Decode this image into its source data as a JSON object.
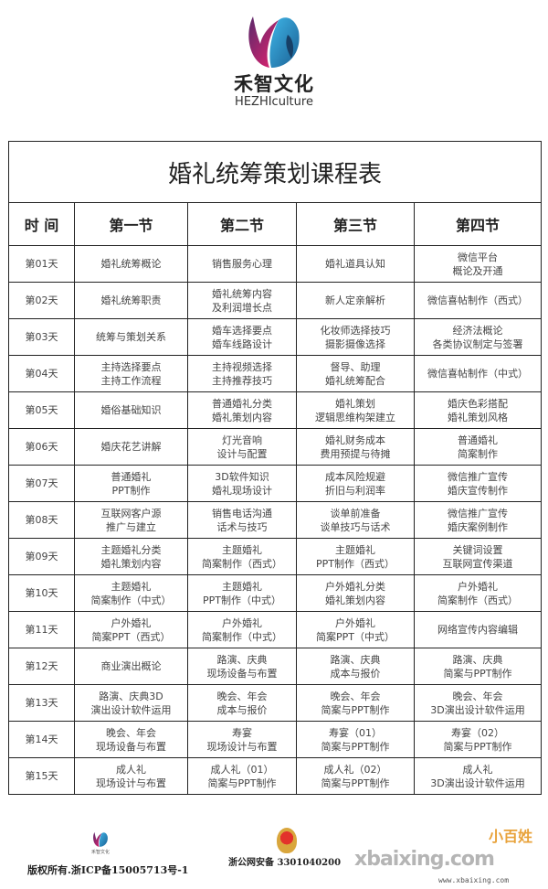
{
  "brand": {
    "name_cn": "禾智文化",
    "name_en": "HEZHIculture"
  },
  "table": {
    "title": "婚礼统筹策划课程表",
    "headers": [
      "时 间",
      "第一节",
      "第二节",
      "第三节",
      "第四节"
    ],
    "rows": [
      [
        "第01天",
        "婚礼统筹概论",
        "销售服务心理",
        "婚礼道具认知",
        "微信平台\n概论及开通"
      ],
      [
        "第02天",
        "婚礼统筹职责",
        "婚礼统筹内容\n及利润增长点",
        "新人定亲解析",
        "微信喜帖制作（西式）"
      ],
      [
        "第03天",
        "统筹与策划关系",
        "婚车选择要点\n婚车线路设计",
        "化妆师选择技巧\n摄影摄像选择",
        "经济法概论\n各类协议制定与签署"
      ],
      [
        "第04天",
        "主持选择要点\n主持工作流程",
        "主持视频选择\n主持推荐技巧",
        "督导、助理\n婚礼统筹配合",
        "微信喜帖制作（中式）"
      ],
      [
        "第05天",
        "婚俗基础知识",
        "普通婚礼分类\n婚礼策划内容",
        "婚礼策划\n逻辑思维构架建立",
        "婚庆色彩搭配\n婚礼策划风格"
      ],
      [
        "第06天",
        "婚庆花艺讲解",
        "灯光音响\n设计与配置",
        "婚礼财务成本\n费用预提与待摊",
        "普通婚礼\n简案制作"
      ],
      [
        "第07天",
        "普通婚礼\nPPT制作",
        "3D软件知识\n婚礼现场设计",
        "成本风险规避\n折旧与利润率",
        "微信推广宣传\n婚庆宣传制作"
      ],
      [
        "第08天",
        "互联网客户源\n推广与建立",
        "销售电话沟通\n话术与技巧",
        "谈单前准备\n谈单技巧与话术",
        "微信推广宣传\n婚庆案例制作"
      ],
      [
        "第09天",
        "主题婚礼分类\n婚礼策划内容",
        "主题婚礼\n简案制作（西式）",
        "主题婚礼\nPPT制作（西式）",
        "关键词设置\n互联网宣传渠道"
      ],
      [
        "第10天",
        "主题婚礼\n简案制作（中式）",
        "主题婚礼\nPPT制作（中式）",
        "户外婚礼分类\n婚礼策划内容",
        "户外婚礼\n简案制作（西式）"
      ],
      [
        "第11天",
        "户外婚礼\n简案PPT（西式）",
        "户外婚礼\n简案制作（中式）",
        "户外婚礼\n简案PPT（中式）",
        "网络宣传内容编辑"
      ],
      [
        "第12天",
        "商业演出概论",
        "路演、庆典\n现场设备与布置",
        "路演、庆典\n成本与报价",
        "路演、庆典\n简案与PPT制作"
      ],
      [
        "第13天",
        "路演、庆典3D\n演出设计软件运用",
        "晚会、年会\n成本与报价",
        "晚会、年会\n简案与PPT制作",
        "晚会、年会\n3D演出设计软件运用"
      ],
      [
        "第14天",
        "晚会、年会\n现场设备与布置",
        "寿宴\n现场设计与布置",
        "寿宴（01）\n简案与PPT制作",
        "寿宴（02）\n简案与PPT制作"
      ],
      [
        "第15天",
        "成人礼\n现场设计与布置",
        "成人礼（01）\n简案与PPT制作",
        "成人礼（02）\n简案与PPT制作",
        "成人礼\n3D演出设计软件运用"
      ]
    ]
  },
  "footer": {
    "mini_logo_text": "禾智文化",
    "copyright": "版权所有.浙ICP备15005713号-1",
    "police_record": "浙公网安备 3301040200",
    "watermark": "xbaixing.com",
    "watermark_url": "www.xbaixing.com",
    "watermark_cn": "小百姓"
  },
  "colors": {
    "logo_pink": "#e8226f",
    "logo_blue": "#1f8fd0",
    "logo_purple": "#5a2a6b",
    "border": "#222222"
  }
}
